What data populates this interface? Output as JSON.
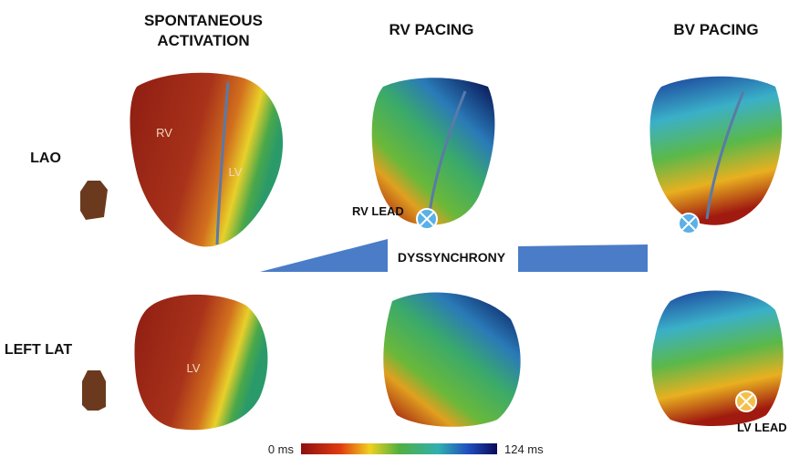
{
  "columns": [
    {
      "title_lines": [
        "SPONTANEOUS",
        "ACTIVATION"
      ]
    },
    {
      "title_lines": [
        "RV PACING"
      ]
    },
    {
      "title_lines": [
        "BV PACING"
      ]
    }
  ],
  "rows": [
    {
      "label": "LAO"
    },
    {
      "label": "LEFT LAT"
    }
  ],
  "heart_labels": {
    "lao_spontaneous": [
      "RV",
      "LV"
    ],
    "lat_spontaneous": [
      "LV"
    ]
  },
  "leads": {
    "rv": "RV LEAD",
    "lv": "LV LEAD"
  },
  "dyssynchrony": "DYSSYNCHRONY",
  "colorbar": {
    "min_label": "0 ms",
    "max_label": "124 ms"
  }
}
